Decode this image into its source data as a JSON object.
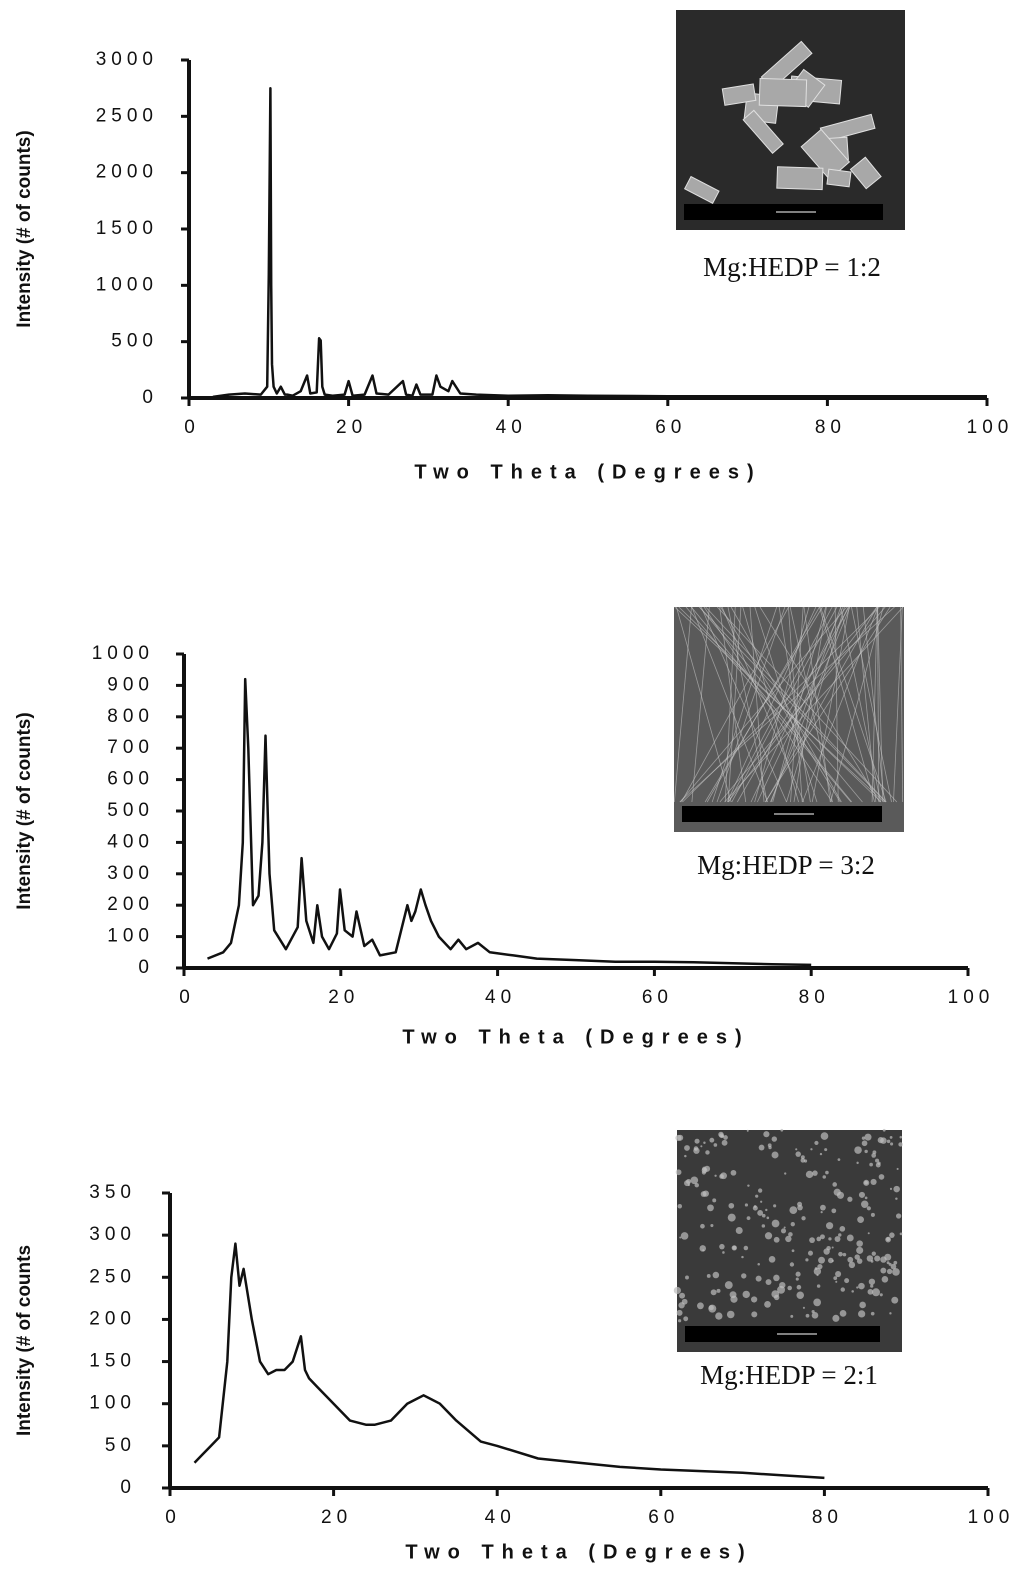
{
  "chart_data": [
    {
      "type": "line",
      "y_label": "Intensity (# of counts)",
      "x_label": "Two Theta (Degrees)",
      "annotation": "Mg:HEDP = 1:2",
      "color": "#111111",
      "xlim": [
        0,
        100
      ],
      "ylim": [
        0,
        3000
      ],
      "xticks": [
        0,
        20,
        40,
        60,
        80,
        100
      ],
      "yticks": [
        0,
        500,
        1000,
        1500,
        2000,
        2500,
        3000
      ],
      "x": [
        3,
        5,
        7,
        9,
        9.8,
        10,
        10.2,
        10.3,
        10.4,
        10.6,
        11,
        11.5,
        12,
        12.3,
        13,
        14,
        14.8,
        15.2,
        16,
        16.3,
        16.5,
        16.7,
        17,
        18,
        19.5,
        20,
        20.5,
        22,
        23,
        23.5,
        25,
        26.8,
        27.2,
        28,
        28.5,
        29,
        30.5,
        31,
        31.5,
        32.5,
        33,
        34,
        36,
        40,
        45,
        50,
        60,
        70,
        80,
        90,
        100
      ],
      "values": [
        10,
        30,
        40,
        30,
        100,
        1100,
        2750,
        1000,
        300,
        100,
        40,
        100,
        30,
        30,
        20,
        60,
        200,
        40,
        50,
        530,
        510,
        100,
        30,
        20,
        30,
        150,
        20,
        30,
        200,
        40,
        30,
        150,
        30,
        20,
        120,
        30,
        30,
        200,
        100,
        60,
        150,
        40,
        30,
        20,
        25,
        20,
        15,
        15,
        15,
        15,
        15
      ]
    },
    {
      "type": "line",
      "y_label": "Intensity (# of counts)",
      "x_label": "Two Theta (Degrees)",
      "annotation": "Mg:HEDP = 3:2",
      "color": "#111111",
      "xlim": [
        0,
        100
      ],
      "ylim": [
        0,
        1000
      ],
      "xticks": [
        0,
        20,
        40,
        60,
        80,
        100
      ],
      "yticks": [
        0,
        100,
        200,
        300,
        400,
        500,
        600,
        700,
        800,
        900,
        1000
      ],
      "x": [
        3,
        5,
        6,
        7,
        7.5,
        7.8,
        8.2,
        8.8,
        9.5,
        10,
        10.4,
        10.9,
        11.5,
        13,
        14.5,
        15,
        15.6,
        16.5,
        17,
        17.6,
        18.5,
        19.5,
        19.9,
        20.5,
        21.5,
        22,
        23,
        24,
        25,
        27,
        28.5,
        29,
        29.5,
        30.2,
        30.8,
        31.5,
        32.5,
        34,
        35,
        36,
        37.5,
        39,
        42,
        45,
        50,
        55,
        60,
        65,
        70,
        75,
        80
      ],
      "values": [
        30,
        50,
        80,
        200,
        400,
        920,
        700,
        200,
        230,
        400,
        740,
        300,
        120,
        60,
        130,
        350,
        150,
        80,
        200,
        100,
        60,
        110,
        250,
        120,
        100,
        180,
        70,
        90,
        40,
        50,
        200,
        150,
        180,
        250,
        200,
        150,
        100,
        60,
        90,
        60,
        80,
        50,
        40,
        30,
        25,
        20,
        20,
        18,
        15,
        12,
        10
      ]
    },
    {
      "type": "line",
      "y_label": "Intensity (# of counts",
      "x_label": "Two Theta (Degrees)",
      "annotation": "Mg:HEDP = 2:1",
      "color": "#111111",
      "xlim": [
        0,
        100
      ],
      "ylim": [
        0,
        350
      ],
      "xticks": [
        0,
        20,
        40,
        60,
        80,
        100
      ],
      "yticks": [
        0,
        50,
        100,
        150,
        200,
        250,
        300,
        350
      ],
      "x": [
        3,
        4,
        5,
        6,
        7,
        7.5,
        8,
        8.5,
        9,
        10,
        11,
        12,
        13,
        14,
        15,
        16,
        16.5,
        17,
        18,
        20,
        22,
        24,
        25,
        27,
        29,
        31,
        33,
        35,
        38,
        40,
        45,
        50,
        55,
        60,
        65,
        70,
        75,
        80
      ],
      "values": [
        30,
        40,
        50,
        60,
        150,
        250,
        290,
        240,
        260,
        200,
        150,
        135,
        140,
        140,
        150,
        180,
        140,
        130,
        120,
        100,
        80,
        75,
        75,
        80,
        100,
        110,
        100,
        80,
        55,
        50,
        35,
        30,
        25,
        22,
        20,
        18,
        15,
        12
      ]
    }
  ]
}
